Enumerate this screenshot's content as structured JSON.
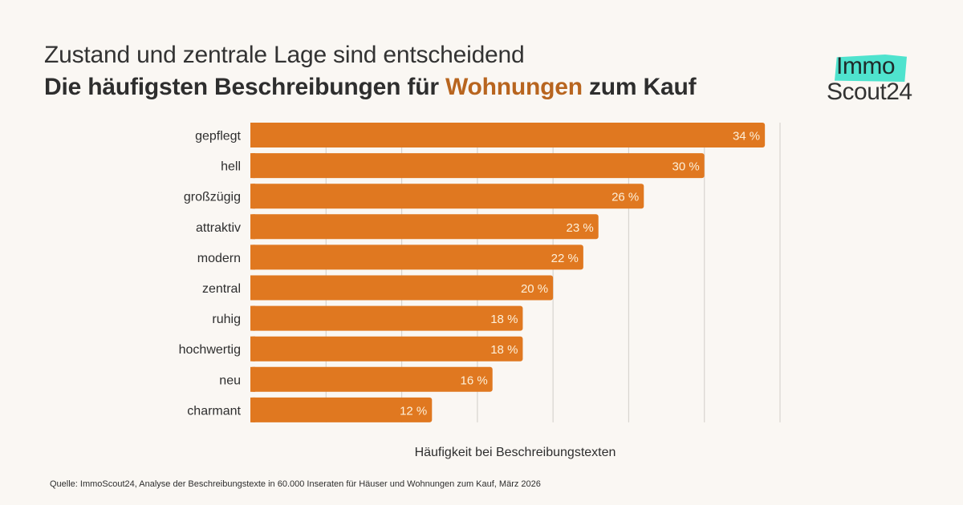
{
  "header": {
    "subtitle": "Zustand und zentrale Lage sind entscheidend",
    "title_before": "Die häufigsten Beschreibungen für ",
    "title_accent": "Wohnungen",
    "title_after": " zum Kauf"
  },
  "logo": {
    "line1": "Immo",
    "line2": "Scout24"
  },
  "colors": {
    "bar": "#E07820",
    "bar_label": "#FDEFD8",
    "accent": "#B8651F",
    "logo_teal": "#4FE3CE",
    "background": "#FAF7F3",
    "grid": "#D8D4CF"
  },
  "chart_data": {
    "type": "bar",
    "orientation": "horizontal",
    "title": "Die häufigsten Beschreibungen für Wohnungen zum Kauf",
    "subtitle": "Zustand und zentrale Lage sind entscheidend",
    "categories": [
      "gepflegt",
      "hell",
      "großzügig",
      "attraktiv",
      "modern",
      "zentral",
      "ruhig",
      "hochwertig",
      "neu",
      "charmant"
    ],
    "values": [
      34,
      30,
      26,
      23,
      22,
      20,
      18,
      18,
      16,
      12
    ],
    "value_labels": [
      "34 %",
      "30 %",
      "26 %",
      "23 %",
      "22 %",
      "20 %",
      "18 %",
      "18 %",
      "16 %",
      "12 %"
    ],
    "unit": "%",
    "xlabel": "Häufigkeit bei Beschreibungstexten",
    "ylabel": "",
    "xlim": [
      0,
      35
    ],
    "grid_step": 5,
    "grid": true,
    "legend": "none"
  },
  "source": "Quelle: ImmoScout24, Analyse der Beschreibungstexte in 60.000 Inseraten für Häuser und Wohnungen zum Kauf, März 2026"
}
